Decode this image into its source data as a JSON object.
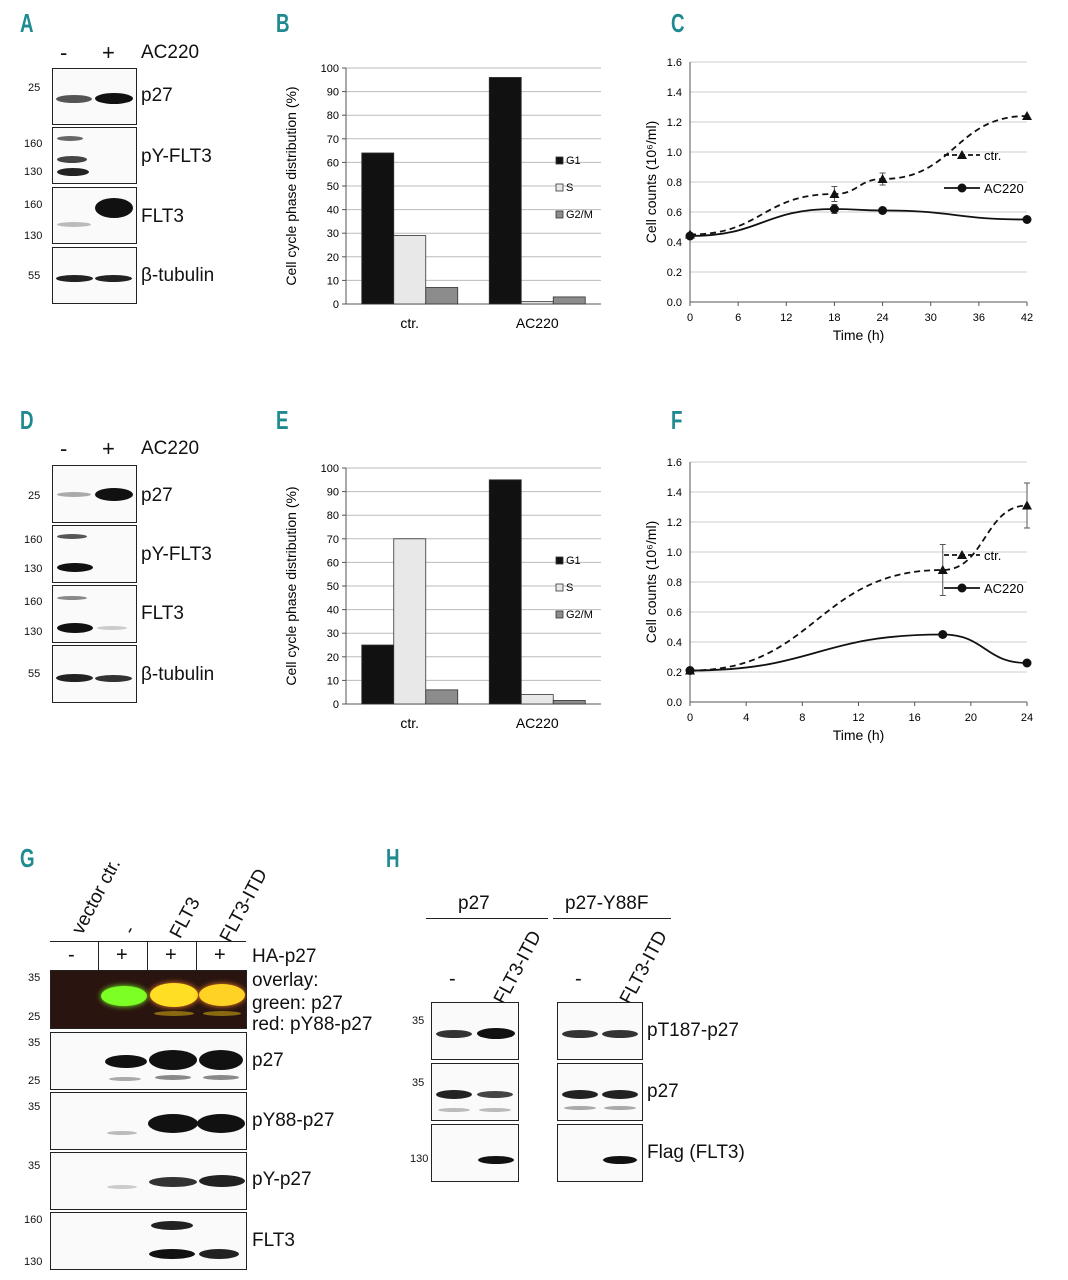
{
  "panel_labels": {
    "A": "A",
    "B": "B",
    "C": "C",
    "D": "D",
    "E": "E",
    "F": "F",
    "G": "G",
    "H": "H"
  },
  "blot_A": {
    "lanes": [
      "-",
      "+"
    ],
    "treatment": "AC220",
    "mw": [
      "25",
      "160",
      "130",
      "160",
      "130",
      "55"
    ],
    "labels": [
      "p27",
      "pY-FLT3",
      "FLT3",
      "β-tubulin"
    ]
  },
  "blot_D": {
    "lanes": [
      "-",
      "+"
    ],
    "treatment": "AC220",
    "mw": [
      "25",
      "160",
      "130",
      "160",
      "130",
      "55"
    ],
    "labels": [
      "p27",
      "pY-FLT3",
      "FLT3",
      "β-tubulin"
    ]
  },
  "blot_G": {
    "column_headers": [
      "vector ctr.",
      "-",
      "FLT3",
      "FLT3-ITD"
    ],
    "ha_row": [
      "-",
      "+",
      "+",
      "+"
    ],
    "ha_label": "HA-p27",
    "overlay_lines": [
      "overlay:",
      "green: p27",
      "red: pY88-p27"
    ],
    "mw": [
      "35",
      "25",
      "35",
      "25",
      "35",
      "35",
      "160",
      "130"
    ],
    "labels": [
      "p27",
      "pY88-p27",
      "pY-p27",
      "FLT3"
    ]
  },
  "blot_H": {
    "groups": [
      "p27",
      "p27-Y88F"
    ],
    "lanes": [
      "-",
      "FLT3-ITD"
    ],
    "mw": [
      "35",
      "35",
      "130"
    ],
    "labels": [
      "pT187-p27",
      "p27",
      "Flag (FLT3)"
    ]
  },
  "chart_data": [
    {
      "panel": "B",
      "type": "bar",
      "categories": [
        "ctr.",
        "AC220"
      ],
      "series": [
        {
          "name": "G1",
          "values": [
            64,
            96
          ],
          "color": "#111111"
        },
        {
          "name": "S",
          "values": [
            29,
            1
          ],
          "color": "#e8e8e8"
        },
        {
          "name": "G2/M",
          "values": [
            7,
            3
          ],
          "color": "#8c8c8c"
        }
      ],
      "ylabel": "Cell cycle phase distribution (%)",
      "ylim": [
        0,
        100
      ],
      "yticks": [
        0,
        10,
        20,
        30,
        40,
        50,
        60,
        70,
        80,
        90,
        100
      ],
      "grid": true,
      "legend": "right"
    },
    {
      "panel": "C",
      "type": "line",
      "series": [
        {
          "name": "ctr.",
          "x": [
            0,
            18,
            24,
            42
          ],
          "y": [
            0.45,
            0.72,
            0.82,
            1.24
          ],
          "err": [
            0,
            0.05,
            0.04,
            0
          ],
          "style": "dashed",
          "marker": "triangle"
        },
        {
          "name": "AC220",
          "x": [
            0,
            18,
            24,
            42
          ],
          "y": [
            0.44,
            0.62,
            0.61,
            0.55
          ],
          "err": [
            0,
            0.03,
            0,
            0
          ],
          "style": "solid",
          "marker": "circle"
        }
      ],
      "xlabel": "Time (h)",
      "ylabel": "Cell counts (10⁶/ml)",
      "xlim": [
        0,
        42
      ],
      "xticks": [
        0,
        6,
        12,
        18,
        24,
        30,
        36,
        42
      ],
      "ylim": [
        0,
        1.6
      ],
      "yticks": [
        0.0,
        0.2,
        0.4,
        0.6,
        0.8,
        1.0,
        1.2,
        1.4,
        1.6
      ],
      "grid": true,
      "legend": "right"
    },
    {
      "panel": "E",
      "type": "bar",
      "categories": [
        "ctr.",
        "AC220"
      ],
      "series": [
        {
          "name": "G1",
          "values": [
            25,
            95
          ],
          "color": "#111111"
        },
        {
          "name": "S",
          "values": [
            70,
            4
          ],
          "color": "#e8e8e8"
        },
        {
          "name": "G2/M",
          "values": [
            6,
            1.5
          ],
          "color": "#8c8c8c"
        }
      ],
      "ylabel": "Cell cycle phase distribution (%)",
      "ylim": [
        0,
        100
      ],
      "yticks": [
        0,
        10,
        20,
        30,
        40,
        50,
        60,
        70,
        80,
        90,
        100
      ],
      "grid": true,
      "legend": "right"
    },
    {
      "panel": "F",
      "type": "line",
      "series": [
        {
          "name": "ctr.",
          "x": [
            0,
            18,
            24
          ],
          "y": [
            0.21,
            0.88,
            1.31
          ],
          "err": [
            0,
            0.17,
            0.15
          ],
          "style": "dashed",
          "marker": "triangle"
        },
        {
          "name": "AC220",
          "x": [
            0,
            18,
            24
          ],
          "y": [
            0.21,
            0.45,
            0.26
          ],
          "err": [
            0,
            0,
            0
          ],
          "style": "solid",
          "marker": "circle"
        }
      ],
      "xlabel": "Time (h)",
      "ylabel": "Cell counts (10⁶/ml)",
      "xlim": [
        0,
        24
      ],
      "xticks": [
        0,
        4,
        8,
        12,
        16,
        20,
        24
      ],
      "ylim": [
        0,
        1.6
      ],
      "yticks": [
        0.0,
        0.2,
        0.4,
        0.6,
        0.8,
        1.0,
        1.2,
        1.4,
        1.6
      ],
      "grid": true,
      "legend": "right"
    }
  ]
}
